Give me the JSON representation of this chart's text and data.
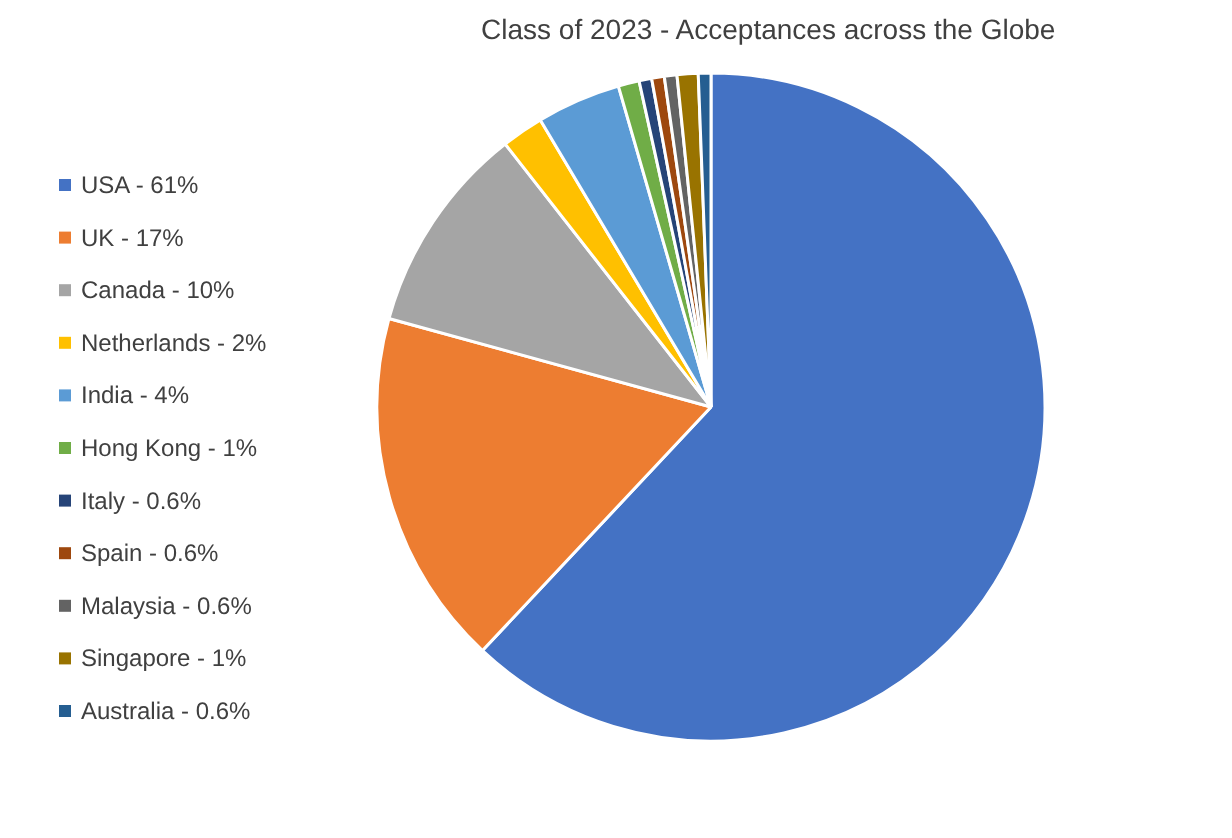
{
  "chart_data": {
    "type": "pie",
    "title": "Class of 2023 - Acceptances across the Globe",
    "categories": [
      "USA - 61%",
      "UK - 17%",
      "Canada - 10%",
      "Netherlands - 2%",
      "India - 4%",
      "Hong Kong - 1%",
      "Italy - 0.6%",
      "Spain - 0.6%",
      "Malaysia - 0.6%",
      "Singapore - 1%",
      "Australia - 0.6%"
    ],
    "values": [
      61,
      17,
      10,
      2,
      4,
      1,
      0.6,
      0.6,
      0.6,
      1,
      0.6
    ],
    "colors": [
      "#4472c4",
      "#ed7d31",
      "#a5a5a5",
      "#ffc000",
      "#5b9bd5",
      "#70ad47",
      "#264478",
      "#9e480e",
      "#636363",
      "#997300",
      "#255e91"
    ],
    "legend": "left"
  }
}
